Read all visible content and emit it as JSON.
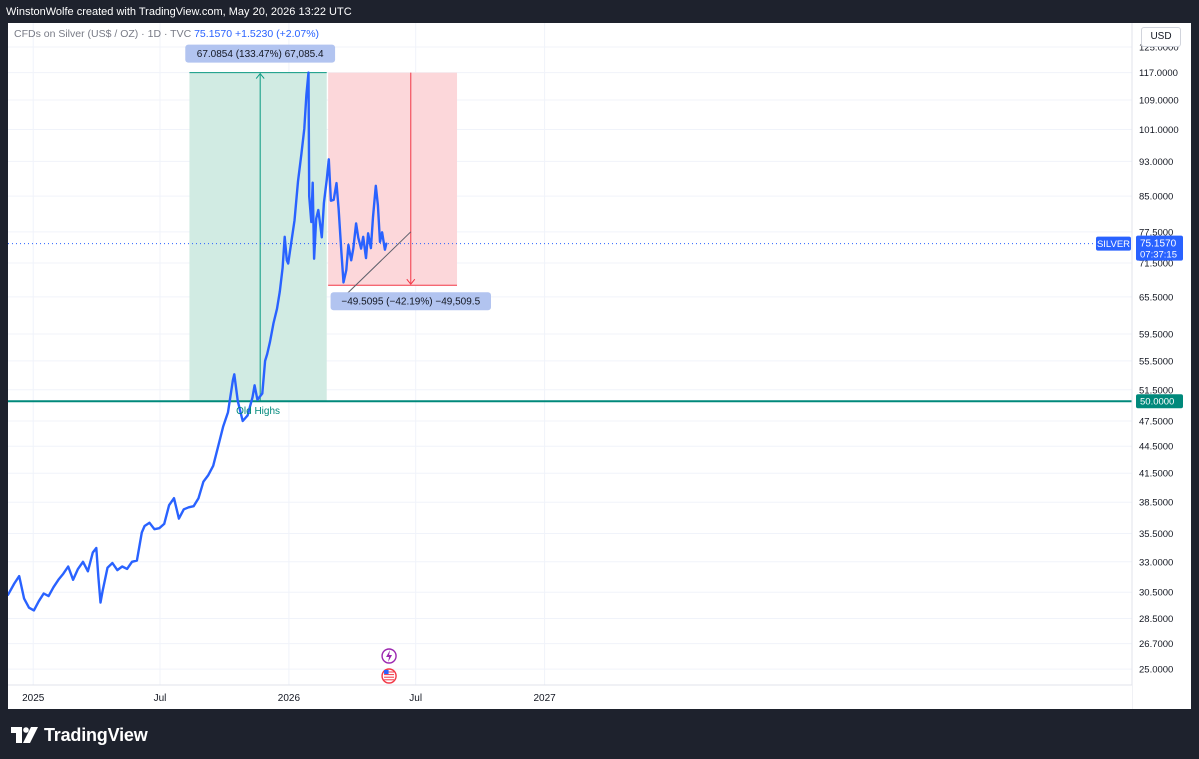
{
  "header": {
    "attribution": "WinstonWolfe created with TradingView.com, May 20, 2026 13:22 UTC"
  },
  "legend": {
    "symbol_desc": "CFDs on Silver (US$ / OZ) · 1D · TVC",
    "last": "75.1570",
    "change": "+1.5230 (+2.07%)"
  },
  "currency": "USD",
  "brand": {
    "name": "TradingView",
    "logo_icon": "tradingview-logo-icon"
  },
  "colors": {
    "series": "#2962ff",
    "long_zone": "#d1ebe3",
    "long_line": "#089981",
    "short_zone": "#fcd7da",
    "short_line": "#f23645",
    "old_highs": "#00897b",
    "label_bg": "#b2c4f0"
  },
  "chart_data": {
    "type": "line",
    "symbol": "SILVER",
    "y_axis": {
      "scale": "log",
      "range": [
        23.5,
        132
      ],
      "ticks": [
        "125.0000",
        "117.0000",
        "109.0000",
        "101.0000",
        "93.0000",
        "85.0000",
        "77.5000",
        "71.5000",
        "65.5000",
        "59.5000",
        "55.5000",
        "51.5000",
        "47.5000",
        "44.5000",
        "41.5000",
        "38.5000",
        "35.5000",
        "33.0000",
        "30.5000",
        "28.5000",
        "26.7000",
        "25.0000"
      ]
    },
    "x_axis": {
      "range": [
        "2024-11-26",
        "2027-04-03"
      ],
      "ticks": [
        {
          "label": "2025",
          "date": "2025-01-01"
        },
        {
          "label": "Jul",
          "date": "2025-07-01"
        },
        {
          "label": "2026",
          "date": "2026-01-01"
        },
        {
          "label": "Jul",
          "date": "2026-07-01"
        },
        {
          "label": "2027",
          "date": "2027-01-01"
        }
      ]
    },
    "series": [
      {
        "points": [
          [
            "2024-11-26",
            30.3
          ],
          [
            "2024-12-05",
            31.2
          ],
          [
            "2024-12-12",
            31.8
          ],
          [
            "2024-12-19",
            30.0
          ],
          [
            "2024-12-26",
            29.3
          ],
          [
            "2025-01-02",
            29.1
          ],
          [
            "2025-01-09",
            29.8
          ],
          [
            "2025-01-16",
            30.4
          ],
          [
            "2025-01-23",
            30.2
          ],
          [
            "2025-01-30",
            30.9
          ],
          [
            "2025-02-06",
            31.5
          ],
          [
            "2025-02-13",
            32.0
          ],
          [
            "2025-02-20",
            32.6
          ],
          [
            "2025-02-27",
            31.5
          ],
          [
            "2025-03-06",
            32.4
          ],
          [
            "2025-03-13",
            33.0
          ],
          [
            "2025-03-20",
            32.2
          ],
          [
            "2025-03-27",
            33.8
          ],
          [
            "2025-04-01",
            34.2
          ],
          [
            "2025-04-04",
            31.7
          ],
          [
            "2025-04-07",
            29.7
          ],
          [
            "2025-04-10",
            30.6
          ],
          [
            "2025-04-17",
            32.5
          ],
          [
            "2025-04-24",
            32.9
          ],
          [
            "2025-05-01",
            32.3
          ],
          [
            "2025-05-08",
            32.6
          ],
          [
            "2025-05-15",
            32.4
          ],
          [
            "2025-05-22",
            33.0
          ],
          [
            "2025-05-29",
            33.1
          ],
          [
            "2025-06-05",
            35.6
          ],
          [
            "2025-06-09",
            36.2
          ],
          [
            "2025-06-16",
            36.5
          ],
          [
            "2025-06-23",
            35.9
          ],
          [
            "2025-06-30",
            36.0
          ],
          [
            "2025-07-07",
            36.4
          ],
          [
            "2025-07-14",
            38.2
          ],
          [
            "2025-07-21",
            38.9
          ],
          [
            "2025-07-28",
            36.9
          ],
          [
            "2025-08-04",
            37.8
          ],
          [
            "2025-08-11",
            38.0
          ],
          [
            "2025-08-18",
            38.1
          ],
          [
            "2025-08-25",
            38.9
          ],
          [
            "2025-09-01",
            40.6
          ],
          [
            "2025-09-08",
            41.3
          ],
          [
            "2025-09-15",
            42.3
          ],
          [
            "2025-09-22",
            44.5
          ],
          [
            "2025-09-29",
            46.8
          ],
          [
            "2025-10-06",
            48.6
          ],
          [
            "2025-10-13",
            52.8
          ],
          [
            "2025-10-15",
            53.6
          ],
          [
            "2025-10-20",
            50.0
          ],
          [
            "2025-10-27",
            47.5
          ],
          [
            "2025-11-03",
            48.2
          ],
          [
            "2025-11-10",
            50.5
          ],
          [
            "2025-11-13",
            52.1
          ],
          [
            "2025-11-17",
            50.2
          ],
          [
            "2025-11-24",
            51.0
          ],
          [
            "2025-11-28",
            55.5
          ],
          [
            "2025-12-01",
            56.5
          ],
          [
            "2025-12-05",
            58.3
          ],
          [
            "2025-12-10",
            61.2
          ],
          [
            "2025-12-15",
            63.5
          ],
          [
            "2025-12-19",
            66.4
          ],
          [
            "2025-12-23",
            70.6
          ],
          [
            "2025-12-26",
            76.5
          ],
          [
            "2025-12-29",
            72.0
          ],
          [
            "2025-12-31",
            71.4
          ],
          [
            "2026-01-05",
            76.0
          ],
          [
            "2026-01-09",
            79.8
          ],
          [
            "2026-01-14",
            88.3
          ],
          [
            "2026-01-19",
            95.0
          ],
          [
            "2026-01-23",
            101.2
          ],
          [
            "2026-01-26",
            110.5
          ],
          [
            "2026-01-29",
            117.0
          ],
          [
            "2026-01-30",
            85.0
          ],
          [
            "2026-02-02",
            79.5
          ],
          [
            "2026-02-04",
            88.0
          ],
          [
            "2026-02-06",
            72.3
          ],
          [
            "2026-02-09",
            80.2
          ],
          [
            "2026-02-12",
            82.0
          ],
          [
            "2026-02-17",
            76.4
          ],
          [
            "2026-02-20",
            83.5
          ],
          [
            "2026-02-24",
            88.6
          ],
          [
            "2026-02-27",
            93.5
          ],
          [
            "2026-03-02",
            84.0
          ],
          [
            "2026-03-06",
            84.2
          ],
          [
            "2026-03-10",
            87.9
          ],
          [
            "2026-03-13",
            82.3
          ],
          [
            "2026-03-17",
            73.5
          ],
          [
            "2026-03-20",
            68.0
          ],
          [
            "2026-03-24",
            70.2
          ],
          [
            "2026-03-27",
            74.9
          ],
          [
            "2026-03-31",
            72.0
          ],
          [
            "2026-04-03",
            74.2
          ],
          [
            "2026-04-07",
            79.2
          ],
          [
            "2026-04-10",
            76.3
          ],
          [
            "2026-04-14",
            74.2
          ],
          [
            "2026-04-17",
            76.5
          ],
          [
            "2026-04-21",
            72.4
          ],
          [
            "2026-04-24",
            77.2
          ],
          [
            "2026-04-28",
            74.3
          ],
          [
            "2026-05-01",
            80.5
          ],
          [
            "2026-05-05",
            87.3
          ],
          [
            "2026-05-08",
            83.0
          ],
          [
            "2026-05-11",
            75.5
          ],
          [
            "2026-05-14",
            77.4
          ],
          [
            "2026-05-18",
            74.0
          ],
          [
            "2026-05-20",
            75.157
          ]
        ]
      }
    ],
    "last_price": {
      "label": "SILVER",
      "value": "75.1570",
      "countdown": "07:37:15"
    },
    "annotations": {
      "old_highs": {
        "price": 50.0,
        "label": "Old Highs",
        "axis_label": "50.0000"
      },
      "long_position": {
        "from": "2025-08-12",
        "to": "2026-02-24",
        "low": 50.0,
        "high": 117.0,
        "arrow_date": "2025-11-21",
        "label": "67.0854 (133.47%) 67,085.4"
      },
      "short_position": {
        "from": "2026-02-26",
        "to": "2026-08-29",
        "low": 67.5,
        "high": 117.0,
        "arrow_date": "2026-06-24",
        "label": "−49.5095 (−42.19%) −49,509.5"
      },
      "trendline": {
        "from": [
          "2026-03-16",
          65.0
        ],
        "to": [
          "2026-06-24",
          77.5
        ]
      },
      "event_icons": [
        "lightning-icon",
        "us-flag-icon"
      ],
      "event_date": "2026-05-24"
    }
  }
}
